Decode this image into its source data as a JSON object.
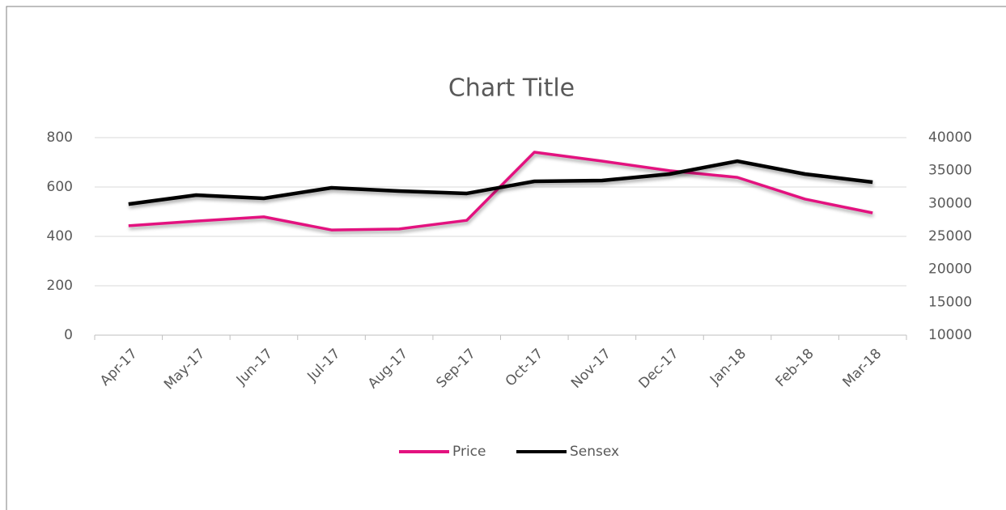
{
  "chart_data": {
    "type": "line",
    "title": "Chart Title",
    "categories": [
      "Apr-17",
      "May-17",
      "Jun-17",
      "Jul-17",
      "Aug-17",
      "Sep-17",
      "Oct-17",
      "Nov-17",
      "Dec-17",
      "Jan-18",
      "Feb-18",
      "Mar-18"
    ],
    "series": [
      {
        "name": "Price",
        "color": "#e3127f",
        "values": [
          443,
          462,
          479,
          426,
          430,
          465,
          741,
          705,
          666,
          639,
          551,
          495
        ]
      },
      {
        "name": "Sensex",
        "color": "#000000",
        "axis": "y2",
        "values": [
          29900,
          31270,
          30780,
          32380,
          31880,
          31520,
          33360,
          33480,
          34470,
          36430,
          34470,
          33240
        ]
      }
    ],
    "ylim": [
      0,
      800
    ],
    "yticks": [
      0,
      200,
      400,
      600,
      800
    ],
    "y2lim": [
      10000,
      40000
    ],
    "y2ticks": [
      10000,
      15000,
      20000,
      25000,
      30000,
      35000,
      40000
    ],
    "grid": true,
    "legend": "bottom"
  }
}
